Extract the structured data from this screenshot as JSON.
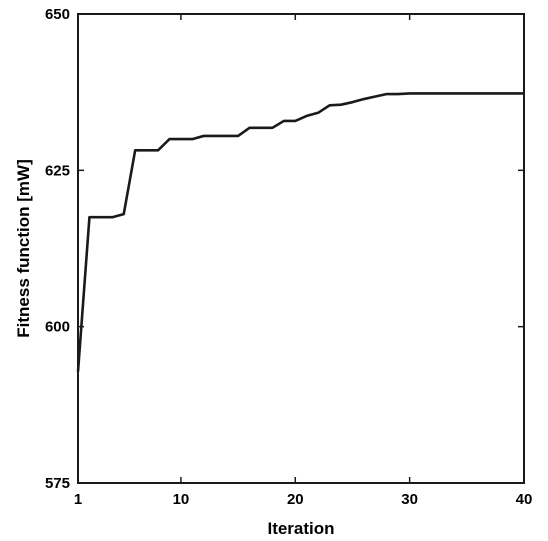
{
  "chart_data": {
    "type": "line",
    "title": "",
    "xlabel": "Iteration",
    "ylabel": "Fitness function [mW]",
    "xlim": [
      1,
      40
    ],
    "ylim": [
      575,
      650
    ],
    "xticks": [
      1,
      10,
      20,
      30,
      40
    ],
    "yticks": [
      575,
      600,
      625,
      650
    ],
    "xtick_labels": [
      "1",
      "10",
      "20",
      "30",
      "40"
    ],
    "ytick_labels": [
      "575",
      "600",
      "625",
      "650"
    ],
    "grid": false,
    "legend": "none",
    "series": [
      {
        "color": "#1a1a1a",
        "x": [
          1,
          2,
          3,
          4,
          5,
          6,
          7,
          8,
          9,
          10,
          11,
          12,
          13,
          14,
          15,
          16,
          17,
          18,
          19,
          20,
          21,
          22,
          23,
          24,
          25,
          26,
          27,
          28,
          29,
          30,
          31,
          32,
          33,
          34,
          35,
          36,
          37,
          38,
          39,
          40
        ],
        "y": [
          592.8,
          617.5,
          617.5,
          617.5,
          618.0,
          628.2,
          628.2,
          628.2,
          630.0,
          630.0,
          630.0,
          630.5,
          630.5,
          630.5,
          630.5,
          631.8,
          631.8,
          631.8,
          632.9,
          632.9,
          633.7,
          634.2,
          635.4,
          635.5,
          635.9,
          636.4,
          636.8,
          637.2,
          637.2,
          637.3,
          637.3,
          637.3,
          637.3,
          637.3,
          637.3,
          637.3,
          637.3,
          637.3,
          637.3,
          637.3
        ]
      }
    ]
  }
}
